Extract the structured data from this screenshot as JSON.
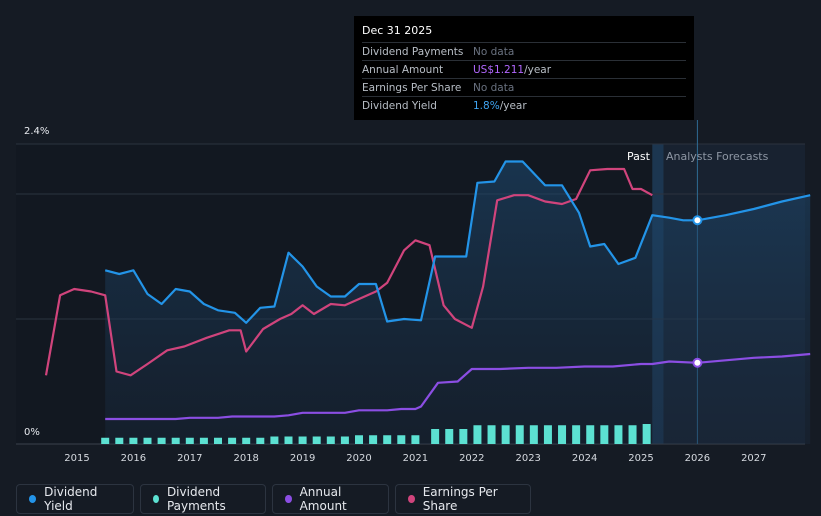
{
  "tooltip": {
    "date": "Dec 31 2025",
    "rows": [
      {
        "label": "Dividend Payments",
        "value": "No data",
        "suffix": ""
      },
      {
        "label": "Annual Amount",
        "value": "US$1.211",
        "suffix": "/year"
      },
      {
        "label": "Earnings Per Share",
        "value": "No data",
        "suffix": ""
      },
      {
        "label": "Dividend Yield",
        "value": "1.8%",
        "suffix": "/year"
      }
    ]
  },
  "labels": {
    "past": "Past",
    "forecast": "Analysts Forecasts"
  },
  "legend": [
    {
      "label": "Dividend Yield",
      "color": "#2394e8"
    },
    {
      "label": "Dividend Payments",
      "color": "#5ce1d2"
    },
    {
      "label": "Annual Amount",
      "color": "#8b4ee3"
    },
    {
      "label": "Earnings Per Share",
      "color": "#d0447c"
    }
  ],
  "colors": {
    "yield": "#2394e8",
    "payments": "#5ce1d2",
    "annual": "#8b4ee3",
    "eps": "#d0447c",
    "annual_value": "#b267ff",
    "yield_value": "#3fa3f0"
  },
  "chart_data": {
    "type": "line",
    "y_axis": {
      "min_label": "0%",
      "max_label": "2.4%",
      "ylim": [
        0,
        2.4
      ],
      "unit": "%"
    },
    "x_ticks": [
      "2015",
      "2016",
      "2017",
      "2018",
      "2019",
      "2020",
      "2021",
      "2022",
      "2023",
      "2024",
      "2025",
      "2026",
      "2027"
    ],
    "xlim": [
      2014.4,
      2028.0
    ],
    "past_end": 2025.2,
    "forecast_start": 2025.4,
    "highlight_date": 2026.0,
    "dividend_yield": [
      [
        2015.5,
        1.39
      ],
      [
        2015.75,
        1.36
      ],
      [
        2016.0,
        1.39
      ],
      [
        2016.25,
        1.2
      ],
      [
        2016.5,
        1.12
      ],
      [
        2016.75,
        1.24
      ],
      [
        2017.0,
        1.22
      ],
      [
        2017.25,
        1.12
      ],
      [
        2017.5,
        1.07
      ],
      [
        2017.8,
        1.05
      ],
      [
        2018.0,
        0.97
      ],
      [
        2018.25,
        1.09
      ],
      [
        2018.5,
        1.1
      ],
      [
        2018.75,
        1.53
      ],
      [
        2019.0,
        1.42
      ],
      [
        2019.25,
        1.26
      ],
      [
        2019.5,
        1.18
      ],
      [
        2019.75,
        1.18
      ],
      [
        2020.0,
        1.28
      ],
      [
        2020.3,
        1.28
      ],
      [
        2020.5,
        0.98
      ],
      [
        2020.8,
        1.0
      ],
      [
        2021.1,
        0.99
      ],
      [
        2021.35,
        1.5
      ],
      [
        2021.6,
        1.5
      ],
      [
        2021.9,
        1.5
      ],
      [
        2022.1,
        2.09
      ],
      [
        2022.4,
        2.1
      ],
      [
        2022.6,
        2.26
      ],
      [
        2022.9,
        2.26
      ],
      [
        2023.3,
        2.07
      ],
      [
        2023.6,
        2.07
      ],
      [
        2023.9,
        1.85
      ],
      [
        2024.1,
        1.58
      ],
      [
        2024.35,
        1.6
      ],
      [
        2024.6,
        1.44
      ],
      [
        2024.9,
        1.49
      ],
      [
        2025.2,
        1.83
      ],
      [
        2025.5,
        1.81
      ],
      [
        2025.75,
        1.79
      ],
      [
        2026.0,
        1.79
      ],
      [
        2026.5,
        1.83
      ],
      [
        2027.0,
        1.88
      ],
      [
        2027.5,
        1.94
      ],
      [
        2028.0,
        1.99
      ]
    ],
    "earnings_per_share": [
      [
        2014.45,
        0.55
      ],
      [
        2014.7,
        1.19
      ],
      [
        2014.95,
        1.24
      ],
      [
        2015.25,
        1.22
      ],
      [
        2015.5,
        1.19
      ],
      [
        2015.7,
        0.58
      ],
      [
        2015.95,
        0.55
      ],
      [
        2016.25,
        0.64
      ],
      [
        2016.6,
        0.75
      ],
      [
        2016.9,
        0.78
      ],
      [
        2017.3,
        0.85
      ],
      [
        2017.7,
        0.91
      ],
      [
        2017.9,
        0.91
      ],
      [
        2018.0,
        0.74
      ],
      [
        2018.3,
        0.92
      ],
      [
        2018.6,
        1.0
      ],
      [
        2018.8,
        1.04
      ],
      [
        2019.0,
        1.11
      ],
      [
        2019.2,
        1.04
      ],
      [
        2019.5,
        1.12
      ],
      [
        2019.75,
        1.11
      ],
      [
        2020.0,
        1.16
      ],
      [
        2020.3,
        1.22
      ],
      [
        2020.5,
        1.29
      ],
      [
        2020.8,
        1.55
      ],
      [
        2021.0,
        1.63
      ],
      [
        2021.25,
        1.59
      ],
      [
        2021.5,
        1.11
      ],
      [
        2021.7,
        1.0
      ],
      [
        2022.0,
        0.93
      ],
      [
        2022.2,
        1.26
      ],
      [
        2022.45,
        1.95
      ],
      [
        2022.75,
        1.99
      ],
      [
        2023.0,
        1.99
      ],
      [
        2023.3,
        1.94
      ],
      [
        2023.6,
        1.92
      ],
      [
        2023.85,
        1.96
      ],
      [
        2024.1,
        2.19
      ],
      [
        2024.4,
        2.2
      ],
      [
        2024.7,
        2.2
      ],
      [
        2024.85,
        2.04
      ],
      [
        2025.0,
        2.04
      ],
      [
        2025.2,
        1.99
      ]
    ],
    "annual_amount": [
      [
        2015.5,
        0.2
      ],
      [
        2016.5,
        0.2
      ],
      [
        2016.75,
        0.2
      ],
      [
        2017.0,
        0.21
      ],
      [
        2017.5,
        0.21
      ],
      [
        2017.75,
        0.22
      ],
      [
        2018.0,
        0.22
      ],
      [
        2018.5,
        0.22
      ],
      [
        2018.75,
        0.23
      ],
      [
        2019.0,
        0.25
      ],
      [
        2019.75,
        0.25
      ],
      [
        2020.0,
        0.27
      ],
      [
        2020.5,
        0.27
      ],
      [
        2020.75,
        0.28
      ],
      [
        2021.0,
        0.28
      ],
      [
        2021.1,
        0.3
      ],
      [
        2021.4,
        0.49
      ],
      [
        2021.75,
        0.5
      ],
      [
        2022.0,
        0.6
      ],
      [
        2022.5,
        0.6
      ],
      [
        2023.0,
        0.61
      ],
      [
        2023.5,
        0.61
      ],
      [
        2024.0,
        0.62
      ],
      [
        2024.5,
        0.62
      ],
      [
        2025.0,
        0.64
      ],
      [
        2025.2,
        0.64
      ],
      [
        2025.5,
        0.66
      ],
      [
        2026.0,
        0.65
      ],
      [
        2026.5,
        0.67
      ],
      [
        2027.0,
        0.69
      ],
      [
        2027.5,
        0.7
      ],
      [
        2028.0,
        0.72
      ]
    ],
    "dividend_payments": [
      [
        2015.5,
        0.05
      ],
      [
        2015.75,
        0.05
      ],
      [
        2016.0,
        0.05
      ],
      [
        2016.25,
        0.05
      ],
      [
        2016.5,
        0.05
      ],
      [
        2016.75,
        0.05
      ],
      [
        2017.0,
        0.05
      ],
      [
        2017.25,
        0.05
      ],
      [
        2017.5,
        0.05
      ],
      [
        2017.75,
        0.05
      ],
      [
        2018.0,
        0.05
      ],
      [
        2018.25,
        0.05
      ],
      [
        2018.5,
        0.06
      ],
      [
        2018.75,
        0.06
      ],
      [
        2019.0,
        0.06
      ],
      [
        2019.25,
        0.06
      ],
      [
        2019.5,
        0.06
      ],
      [
        2019.75,
        0.06
      ],
      [
        2020.0,
        0.07
      ],
      [
        2020.25,
        0.07
      ],
      [
        2020.5,
        0.07
      ],
      [
        2020.75,
        0.07
      ],
      [
        2021.0,
        0.07
      ],
      [
        2021.35,
        0.12
      ],
      [
        2021.6,
        0.12
      ],
      [
        2021.85,
        0.12
      ],
      [
        2022.1,
        0.15
      ],
      [
        2022.35,
        0.15
      ],
      [
        2022.6,
        0.15
      ],
      [
        2022.85,
        0.15
      ],
      [
        2023.1,
        0.15
      ],
      [
        2023.35,
        0.15
      ],
      [
        2023.6,
        0.15
      ],
      [
        2023.85,
        0.15
      ],
      [
        2024.1,
        0.15
      ],
      [
        2024.35,
        0.15
      ],
      [
        2024.6,
        0.15
      ],
      [
        2024.85,
        0.15
      ],
      [
        2025.1,
        0.16
      ]
    ]
  }
}
